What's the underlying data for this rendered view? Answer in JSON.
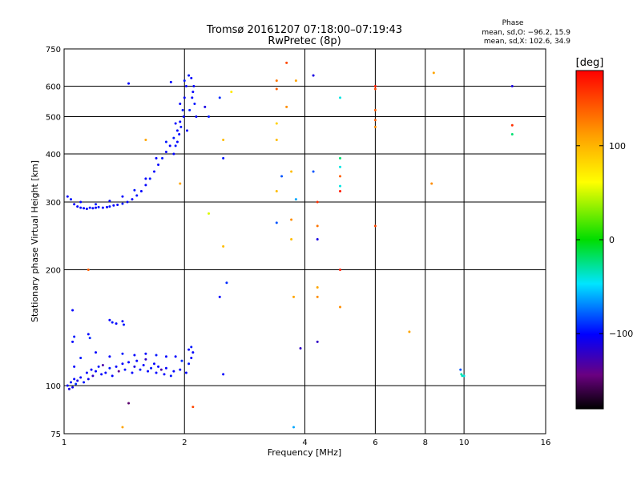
{
  "chart_data": {
    "type": "scatter",
    "title_line1": "Tromsø 20161207 07:18:00–07:19:43",
    "title_line2": "RwPretec (8p)",
    "info": {
      "heading": "Phase",
      "line1": "mean, sd,O: −96.2, 15.9",
      "line2": "mean, sd,X: 102.6, 34.9"
    },
    "xlabel": "Frequency [MHz]",
    "ylabel": "Stationary phase Virtual Height [km]",
    "x_scale": "log",
    "y_scale": "log",
    "xlim": [
      1,
      16
    ],
    "ylim": [
      75,
      750
    ],
    "x_ticks": [
      1,
      2,
      4,
      6,
      8,
      10,
      16
    ],
    "y_ticks": [
      75,
      100,
      200,
      300,
      400,
      500,
      600,
      750
    ],
    "x_grid": [
      2,
      4,
      6,
      8,
      10
    ],
    "y_grid": [
      100,
      200,
      300,
      400,
      500,
      600
    ],
    "colorbar": {
      "label": "[deg]",
      "range": [
        -180,
        180
      ],
      "ticks": [
        100,
        0,
        -100
      ]
    },
    "points": [
      [
        1.02,
        100,
        -100
      ],
      [
        1.03,
        98,
        -110
      ],
      [
        1.04,
        102,
        -95
      ],
      [
        1.05,
        99,
        -105
      ],
      [
        1.06,
        104,
        -100
      ],
      [
        1.07,
        101,
        -90
      ],
      [
        1.08,
        103,
        -110
      ],
      [
        1.1,
        105,
        -100
      ],
      [
        1.12,
        102,
        -95
      ],
      [
        1.14,
        108,
        -100
      ],
      [
        1.15,
        104,
        -105
      ],
      [
        1.17,
        110,
        -100
      ],
      [
        1.18,
        106,
        -120
      ],
      [
        1.2,
        109,
        -100
      ],
      [
        1.22,
        112,
        -95
      ],
      [
        1.24,
        107,
        -100
      ],
      [
        1.25,
        113,
        -130
      ],
      [
        1.27,
        108,
        -100
      ],
      [
        1.3,
        111,
        -95
      ],
      [
        1.32,
        106,
        -100
      ],
      [
        1.35,
        112,
        -100
      ],
      [
        1.37,
        109,
        -140
      ],
      [
        1.4,
        114,
        -100
      ],
      [
        1.42,
        110,
        -95
      ],
      [
        1.45,
        115,
        -100
      ],
      [
        1.48,
        108,
        -100
      ],
      [
        1.5,
        112,
        -110
      ],
      [
        1.52,
        116,
        -100
      ],
      [
        1.55,
        110,
        -95
      ],
      [
        1.58,
        113,
        -100
      ],
      [
        1.6,
        117,
        -120
      ],
      [
        1.62,
        109,
        -100
      ],
      [
        1.65,
        111,
        -95
      ],
      [
        1.68,
        114,
        -100
      ],
      [
        1.7,
        108,
        -100
      ],
      [
        1.72,
        112,
        -100
      ],
      [
        1.75,
        110,
        -130
      ],
      [
        1.78,
        107,
        -100
      ],
      [
        1.8,
        111,
        -100
      ],
      [
        1.85,
        106,
        -95
      ],
      [
        1.88,
        109,
        -100
      ],
      [
        1.95,
        110,
        -100
      ],
      [
        1.97,
        116,
        -90
      ],
      [
        2.02,
        108,
        -100
      ],
      [
        2.05,
        114,
        -95
      ],
      [
        2.08,
        118,
        -100
      ],
      [
        1.06,
        112,
        -100
      ],
      [
        1.1,
        118,
        -95
      ],
      [
        1.2,
        122,
        -100
      ],
      [
        1.3,
        119,
        -100
      ],
      [
        1.4,
        121,
        -95
      ],
      [
        1.5,
        120,
        -100
      ],
      [
        1.6,
        121,
        -100
      ],
      [
        1.7,
        120,
        -95
      ],
      [
        1.8,
        119,
        -100
      ],
      [
        1.9,
        119,
        -100
      ],
      [
        1.05,
        130,
        -100
      ],
      [
        1.06,
        134,
        -95
      ],
      [
        1.15,
        136,
        -100
      ],
      [
        1.16,
        133,
        -90
      ],
      [
        1.3,
        148,
        -100
      ],
      [
        1.32,
        146,
        -95
      ],
      [
        1.35,
        145,
        -100
      ],
      [
        1.4,
        147,
        -100
      ],
      [
        1.41,
        144,
        -95
      ],
      [
        1.05,
        157,
        -100
      ],
      [
        1.45,
        90,
        -150
      ],
      [
        2.05,
        124,
        -100
      ],
      [
        2.08,
        126,
        -95
      ],
      [
        2.1,
        122,
        -100
      ],
      [
        1.02,
        310,
        -100
      ],
      [
        1.04,
        305,
        -95
      ],
      [
        1.06,
        296,
        -100
      ],
      [
        1.08,
        292,
        -100
      ],
      [
        1.1,
        290,
        -95
      ],
      [
        1.12,
        289,
        -100
      ],
      [
        1.14,
        288,
        -100
      ],
      [
        1.16,
        290,
        -95
      ],
      [
        1.18,
        289,
        -100
      ],
      [
        1.2,
        290,
        -100
      ],
      [
        1.22,
        291,
        -95
      ],
      [
        1.25,
        290,
        -100
      ],
      [
        1.28,
        291,
        -100
      ],
      [
        1.3,
        292,
        -95
      ],
      [
        1.33,
        294,
        -100
      ],
      [
        1.36,
        295,
        -100
      ],
      [
        1.4,
        297,
        -95
      ],
      [
        1.44,
        300,
        -100
      ],
      [
        1.48,
        305,
        -100
      ],
      [
        1.52,
        312,
        -95
      ],
      [
        1.56,
        320,
        -100
      ],
      [
        1.6,
        332,
        -100
      ],
      [
        1.64,
        345,
        -95
      ],
      [
        1.68,
        360,
        -100
      ],
      [
        1.72,
        375,
        -100
      ],
      [
        1.76,
        390,
        -95
      ],
      [
        1.8,
        405,
        -100
      ],
      [
        1.84,
        420,
        -100
      ],
      [
        1.88,
        440,
        -95
      ],
      [
        1.92,
        460,
        -100
      ],
      [
        1.95,
        485,
        -100
      ],
      [
        1.98,
        520,
        -95
      ],
      [
        2.0,
        560,
        -100
      ],
      [
        2.02,
        600,
        -100
      ],
      [
        2.05,
        640,
        -95
      ],
      [
        2.08,
        630,
        -100
      ],
      [
        2.1,
        580,
        -100
      ],
      [
        2.12,
        540,
        -95
      ],
      [
        2.14,
        500,
        -100
      ],
      [
        1.1,
        300,
        -100
      ],
      [
        1.2,
        296,
        -95
      ],
      [
        1.3,
        302,
        -100
      ],
      [
        1.4,
        310,
        -100
      ],
      [
        1.5,
        322,
        -95
      ],
      [
        1.6,
        345,
        -100
      ],
      [
        1.7,
        390,
        -100
      ],
      [
        1.8,
        430,
        -95
      ],
      [
        1.9,
        480,
        -100
      ],
      [
        1.95,
        540,
        -100
      ],
      [
        2.0,
        620,
        -95
      ],
      [
        1.85,
        615,
        -100
      ],
      [
        1.45,
        610,
        -100
      ],
      [
        1.88,
        400,
        -100
      ],
      [
        1.9,
        420,
        -95
      ],
      [
        1.92,
        430,
        -100
      ],
      [
        1.94,
        450,
        -100
      ],
      [
        1.96,
        470,
        -95
      ],
      [
        1.99,
        500,
        -100
      ],
      [
        2.03,
        460,
        -100
      ],
      [
        2.06,
        520,
        -95
      ],
      [
        2.09,
        560,
        -100
      ],
      [
        2.11,
        600,
        -100
      ],
      [
        2.25,
        530,
        -110
      ],
      [
        2.3,
        500,
        -95
      ],
      [
        2.45,
        560,
        -90
      ],
      [
        2.5,
        390,
        -95
      ],
      [
        2.45,
        170,
        -100
      ],
      [
        2.55,
        185,
        -90
      ],
      [
        2.5,
        107,
        -100
      ],
      [
        2.3,
        280,
        60
      ],
      [
        1.6,
        435,
        110
      ],
      [
        1.95,
        335,
        110
      ],
      [
        2.1,
        88,
        150
      ],
      [
        1.15,
        200,
        140
      ],
      [
        1.4,
        78,
        110
      ],
      [
        2.5,
        435,
        100
      ],
      [
        2.5,
        230,
        100
      ],
      [
        2.62,
        580,
        80
      ],
      [
        3.6,
        690,
        150
      ],
      [
        3.4,
        620,
        130
      ],
      [
        3.4,
        590,
        140
      ],
      [
        3.6,
        530,
        120
      ],
      [
        3.4,
        480,
        90
      ],
      [
        3.4,
        435,
        100
      ],
      [
        3.4,
        320,
        100
      ],
      [
        3.5,
        350,
        -80
      ],
      [
        3.7,
        360,
        100
      ],
      [
        3.7,
        240,
        100
      ],
      [
        3.7,
        270,
        120
      ],
      [
        3.4,
        265,
        -80
      ],
      [
        3.8,
        620,
        110
      ],
      [
        3.8,
        305,
        -60
      ],
      [
        3.75,
        170,
        110
      ],
      [
        3.9,
        125,
        -120
      ],
      [
        3.75,
        78,
        -60
      ],
      [
        4.2,
        360,
        -80
      ],
      [
        4.2,
        640,
        -110
      ],
      [
        4.3,
        300,
        160
      ],
      [
        4.3,
        260,
        130
      ],
      [
        4.3,
        240,
        -110
      ],
      [
        4.3,
        180,
        110
      ],
      [
        4.3,
        170,
        120
      ],
      [
        4.3,
        130,
        -120
      ],
      [
        4.9,
        200,
        170
      ],
      [
        4.9,
        370,
        -40
      ],
      [
        4.9,
        390,
        -20
      ],
      [
        4.9,
        350,
        140
      ],
      [
        4.9,
        330,
        -40
      ],
      [
        4.9,
        320,
        170
      ],
      [
        4.9,
        160,
        120
      ],
      [
        4.9,
        560,
        -40
      ],
      [
        6.0,
        590,
        150
      ],
      [
        6.0,
        600,
        170
      ],
      [
        6.0,
        520,
        140
      ],
      [
        6.0,
        470,
        120
      ],
      [
        6.0,
        490,
        140
      ],
      [
        6.0,
        260,
        150
      ],
      [
        7.3,
        138,
        110
      ],
      [
        8.3,
        335,
        120
      ],
      [
        8.4,
        650,
        110
      ],
      [
        9.8,
        110,
        -80
      ],
      [
        9.9,
        106,
        -30
      ],
      [
        10.0,
        106,
        -40
      ],
      [
        9.85,
        107,
        -30
      ],
      [
        13.2,
        600,
        -110
      ],
      [
        13.2,
        475,
        160
      ],
      [
        13.2,
        450,
        -20
      ]
    ]
  }
}
